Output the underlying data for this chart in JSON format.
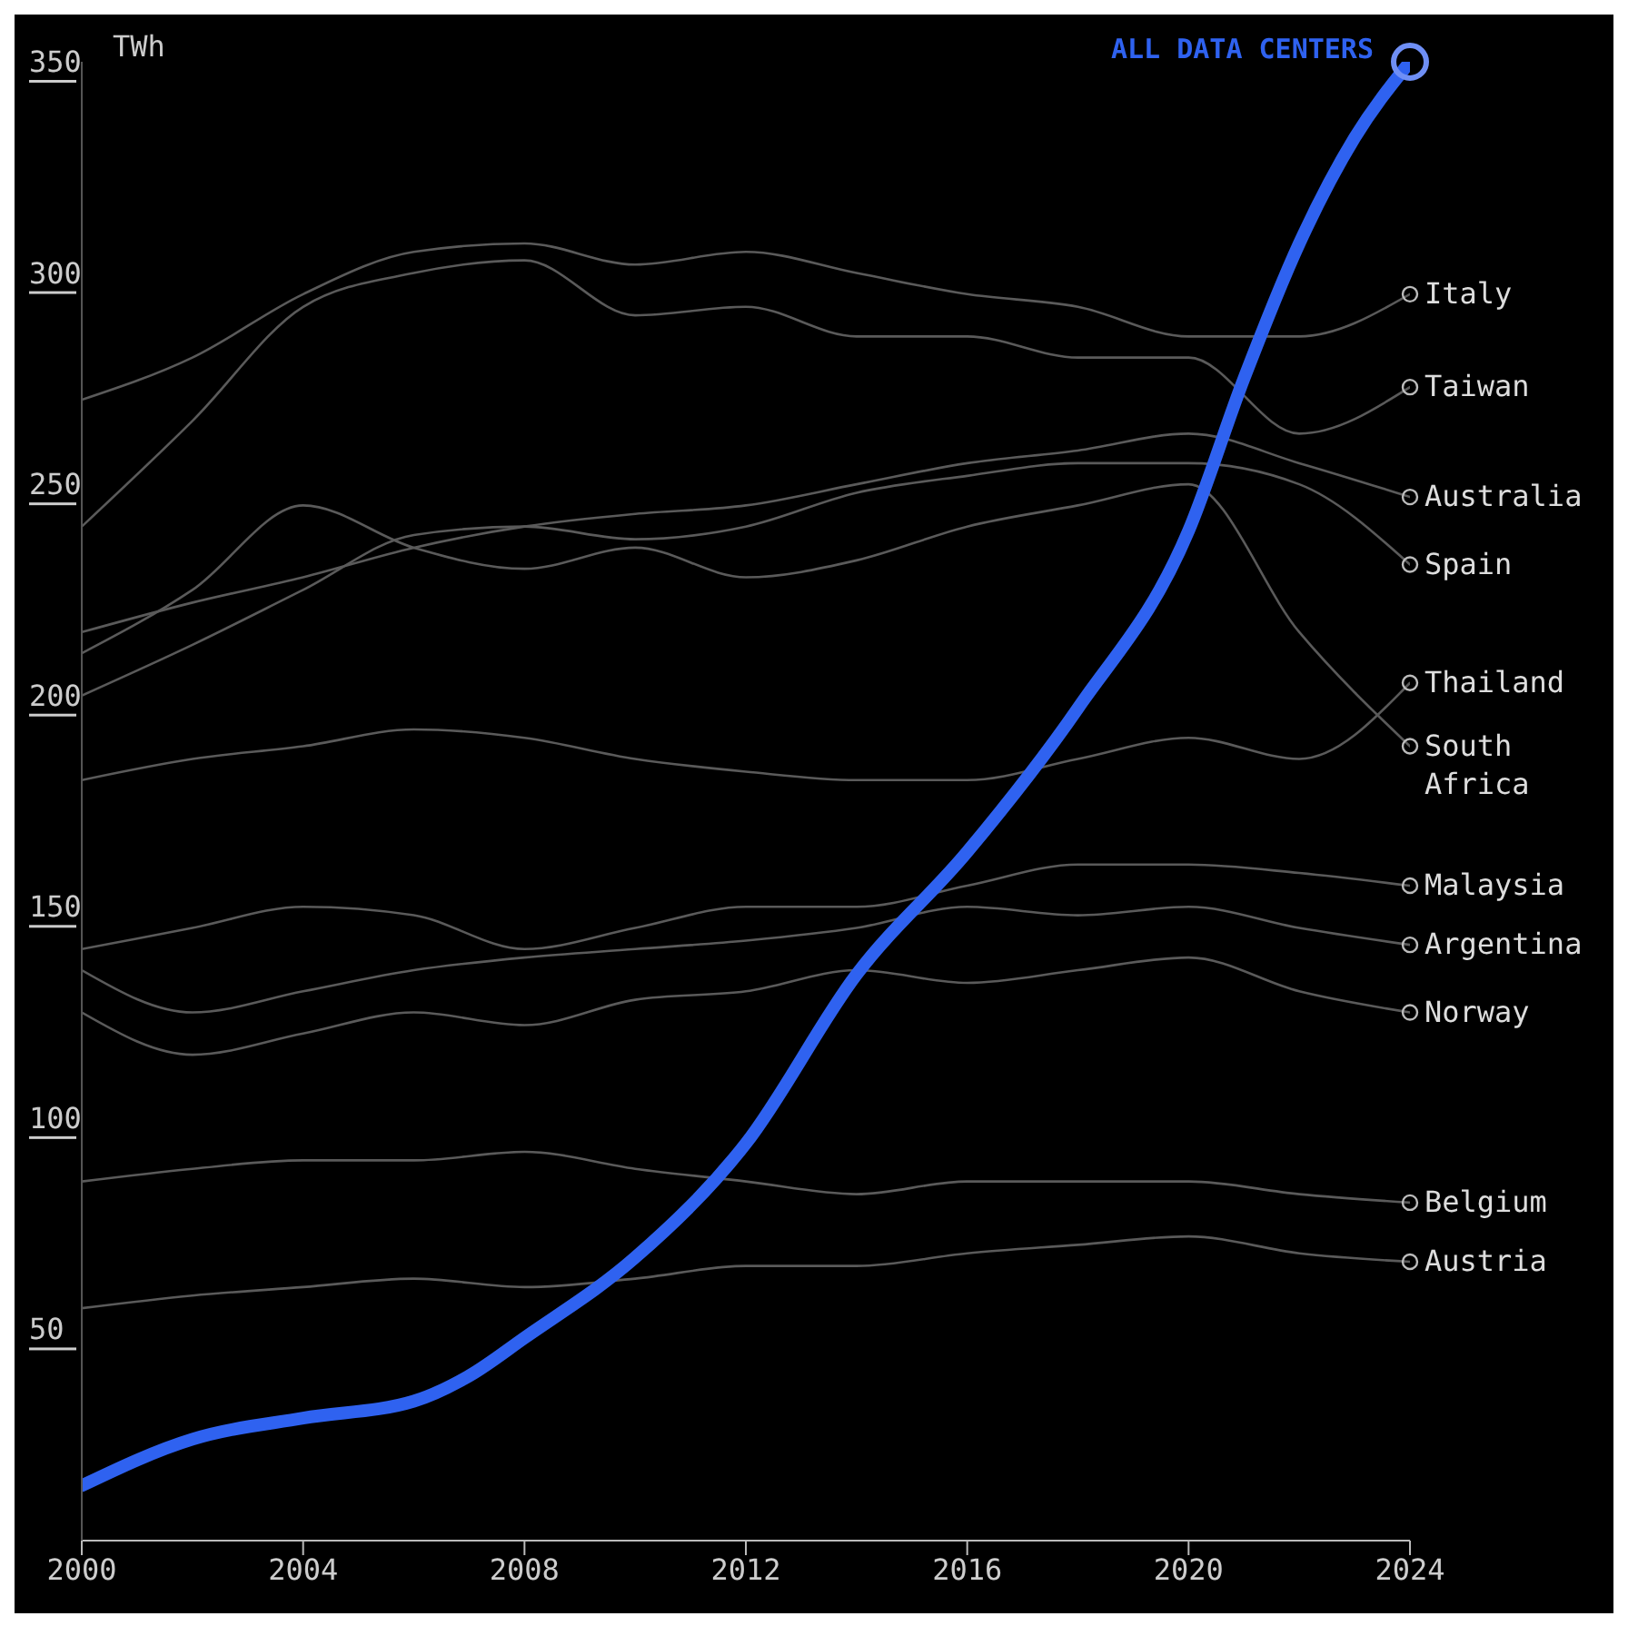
{
  "chart_data": {
    "type": "line",
    "ylabel": "TWh",
    "x": [
      2000,
      2002,
      2004,
      2006,
      2008,
      2010,
      2012,
      2014,
      2016,
      2018,
      2020,
      2022,
      2024
    ],
    "xlim": [
      2000,
      2024
    ],
    "xticks": [
      2000,
      2004,
      2008,
      2012,
      2016,
      2020,
      2024
    ],
    "ylim": [
      0,
      350
    ],
    "yticks": [
      50,
      100,
      150,
      200,
      250,
      300,
      350
    ],
    "grid": false,
    "legend": false,
    "marker": "none",
    "line_style": "solid",
    "series": [
      {
        "name": "Italy",
        "color": "#5a5a5a",
        "values": [
          270,
          280,
          295,
          305,
          307,
          302,
          305,
          300,
          295,
          292,
          285,
          285,
          295
        ]
      },
      {
        "name": "Taiwan",
        "color": "#5a5a5a",
        "values": [
          240,
          265,
          292,
          300,
          303,
          290,
          292,
          285,
          285,
          280,
          280,
          262,
          273
        ]
      },
      {
        "name": "Australia",
        "color": "#5a5a5a",
        "values": [
          215,
          222,
          228,
          235,
          240,
          243,
          245,
          250,
          255,
          258,
          262,
          255,
          247
        ]
      },
      {
        "name": "Spain",
        "color": "#5a5a5a",
        "values": [
          200,
          212,
          225,
          238,
          240,
          237,
          240,
          248,
          252,
          255,
          255,
          250,
          231
        ]
      },
      {
        "name": "Thailand",
        "color": "#5a5a5a",
        "values": [
          180,
          185,
          188,
          192,
          190,
          185,
          182,
          180,
          180,
          185,
          190,
          185,
          203
        ]
      },
      {
        "name": "South Africa",
        "color": "#5a5a5a",
        "values": [
          210,
          225,
          245,
          235,
          230,
          235,
          228,
          232,
          240,
          245,
          250,
          215,
          188
        ]
      },
      {
        "name": "Malaysia",
        "color": "#5a5a5a",
        "values": [
          140,
          145,
          150,
          148,
          140,
          145,
          150,
          150,
          155,
          160,
          160,
          158,
          155
        ]
      },
      {
        "name": "Argentina",
        "color": "#5a5a5a",
        "values": [
          135,
          125,
          130,
          135,
          138,
          140,
          142,
          145,
          150,
          148,
          150,
          145,
          141
        ]
      },
      {
        "name": "Norway",
        "color": "#5a5a5a",
        "values": [
          125,
          115,
          120,
          125,
          122,
          128,
          130,
          135,
          132,
          135,
          138,
          130,
          125
        ]
      },
      {
        "name": "Belgium",
        "color": "#5a5a5a",
        "values": [
          85,
          88,
          90,
          90,
          92,
          88,
          85,
          82,
          85,
          85,
          85,
          82,
          80
        ]
      },
      {
        "name": "Austria",
        "color": "#5a5a5a",
        "values": [
          55,
          58,
          60,
          62,
          60,
          62,
          65,
          65,
          68,
          70,
          72,
          68,
          66
        ]
      },
      {
        "name": "ALL DATA CENTERS",
        "color": "#2f62f0",
        "x": [
          2000,
          2002,
          2004,
          2006,
          2007,
          2008,
          2010,
          2012,
          2014,
          2016,
          2018,
          2020,
          2021,
          2022,
          2023,
          2024
        ],
        "values": [
          13,
          24,
          29,
          33,
          39,
          48,
          67,
          94,
          134,
          163,
          197,
          239,
          275,
          307,
          332,
          350
        ]
      }
    ]
  }
}
